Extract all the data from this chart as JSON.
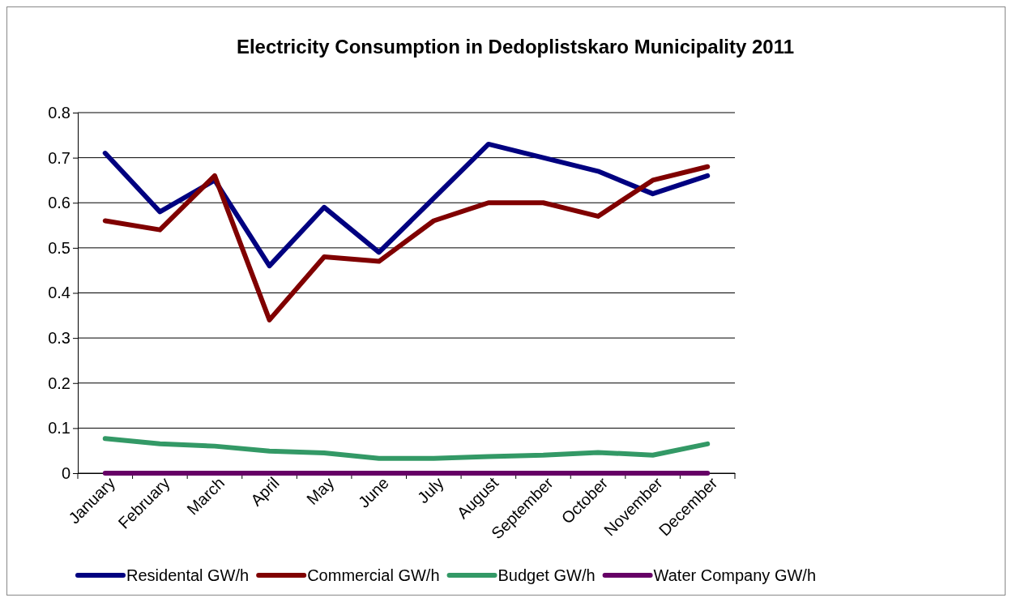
{
  "chart_data": {
    "type": "line",
    "title": "Electricity Consumption in Dedoplistskaro Municipality 2011",
    "categories": [
      "January",
      "February",
      "March",
      "April",
      "May",
      "June",
      "July",
      "August",
      "September",
      "October",
      "November",
      "December"
    ],
    "series": [
      {
        "name": "Residental GW/h",
        "color": "#000080",
        "values": [
          0.71,
          0.58,
          0.65,
          0.46,
          0.59,
          0.49,
          0.61,
          0.73,
          0.7,
          0.67,
          0.62,
          0.66
        ]
      },
      {
        "name": "Commercial GW/h",
        "color": "#800000",
        "values": [
          0.56,
          0.54,
          0.66,
          0.34,
          0.48,
          0.47,
          0.56,
          0.6,
          0.6,
          0.57,
          0.65,
          0.68
        ]
      },
      {
        "name": "Budget GW/h",
        "color": "#339966",
        "values": [
          0.077,
          0.065,
          0.06,
          0.049,
          0.045,
          0.033,
          0.033,
          0.037,
          0.04,
          0.046,
          0.04,
          0.065
        ]
      },
      {
        "name": "Water Company GW/h",
        "color": "#660066",
        "values": [
          0,
          0,
          0,
          0,
          0,
          0,
          0,
          0,
          0,
          0,
          0,
          0
        ]
      }
    ],
    "ylim": [
      0,
      0.8
    ],
    "yticks": [
      0,
      0.1,
      0.2,
      0.3,
      0.4,
      0.5,
      0.6,
      0.7,
      0.8
    ],
    "grid": "y",
    "legend": "bottom",
    "marker": "none",
    "line_style": "solid"
  }
}
